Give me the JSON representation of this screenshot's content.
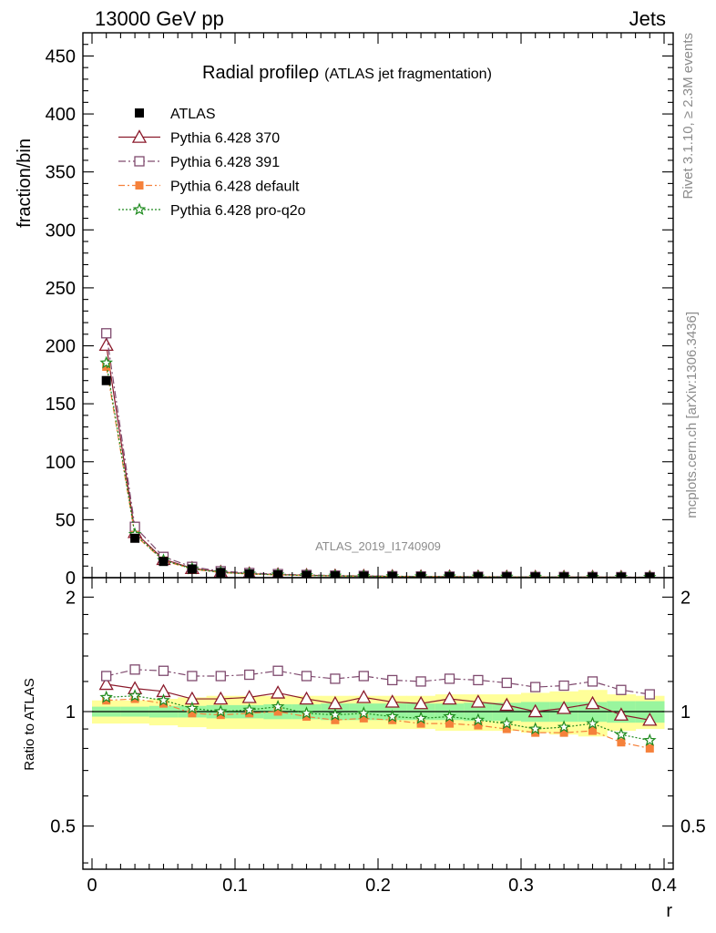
{
  "header": {
    "left": "13000 GeV pp",
    "right": "Jets"
  },
  "side_text": {
    "rivet": "Rivet 3.1.10, ≥ 2.3M events",
    "mcplots": "mcplots.cern.ch [arXiv:1306.3436]"
  },
  "watermark": "ATLAS_2019_I1740909",
  "chart_data": {
    "type": "scatter",
    "title": "Radial profile",
    "title_symbol": "ρ",
    "subtitle": "(ATLAS jet fragmentation)",
    "ylabel": "fraction/bin",
    "xlabel": "r",
    "ratio_ylabel": "Ratio to ATLAS",
    "xlim": [
      0,
      0.4
    ],
    "ylim": [
      0,
      470
    ],
    "ratio_ylim": [
      0.385,
      2.25
    ],
    "ratio_log": true,
    "x_ticks": [
      0,
      0.1,
      0.2,
      0.3,
      0.4
    ],
    "x_tick_labels": [
      "0",
      "0.1",
      "0.2",
      "0.3",
      "0.4"
    ],
    "y_ticks": [
      0,
      50,
      100,
      150,
      200,
      250,
      300,
      350,
      400,
      450
    ],
    "y_tick_labels": [
      "0",
      "50",
      "100",
      "150",
      "200",
      "250",
      "300",
      "350",
      "400",
      "450"
    ],
    "ratio_ticks": [
      0.5,
      1,
      2
    ],
    "ratio_tick_labels": [
      "0.5",
      "1",
      "2"
    ],
    "x": [
      0.01,
      0.03,
      0.05,
      0.07,
      0.09,
      0.11,
      0.13,
      0.15,
      0.17,
      0.19,
      0.21,
      0.23,
      0.25,
      0.27,
      0.29,
      0.31,
      0.33,
      0.35,
      0.37,
      0.39
    ],
    "reference": {
      "name": "ATLAS",
      "values": [
        170,
        34,
        14,
        7.5,
        4.5,
        3.2,
        2.4,
        1.9,
        1.5,
        1.25,
        1.05,
        0.9,
        0.8,
        0.7,
        0.62,
        0.55,
        0.5,
        0.45,
        0.41,
        0.38
      ],
      "band_inner": [
        0.03,
        0.03,
        0.035,
        0.035,
        0.04,
        0.04,
        0.045,
        0.045,
        0.05,
        0.05,
        0.05,
        0.05,
        0.05,
        0.055,
        0.055,
        0.06,
        0.06,
        0.06,
        0.065,
        0.065
      ],
      "band_outer": [
        0.07,
        0.07,
        0.08,
        0.09,
        0.1,
        0.1,
        0.1,
        0.1,
        0.1,
        0.1,
        0.1,
        0.1,
        0.11,
        0.11,
        0.11,
        0.12,
        0.13,
        0.14,
        0.11,
        0.1
      ]
    },
    "series": [
      {
        "name": "Pythia 6.428 370",
        "color": "#8b1a2b",
        "marker": "triangle-open",
        "dash": "",
        "ratio": [
          1.18,
          1.15,
          1.13,
          1.08,
          1.08,
          1.09,
          1.12,
          1.08,
          1.05,
          1.09,
          1.06,
          1.05,
          1.08,
          1.06,
          1.04,
          1.0,
          1.02,
          1.05,
          0.98,
          0.95
        ]
      },
      {
        "name": "Pythia 6.428 391",
        "color": "#7f4a6e",
        "marker": "square-open",
        "dash": "8,3,2,3",
        "ratio": [
          1.24,
          1.29,
          1.28,
          1.24,
          1.24,
          1.25,
          1.28,
          1.24,
          1.22,
          1.24,
          1.21,
          1.2,
          1.22,
          1.21,
          1.19,
          1.16,
          1.17,
          1.2,
          1.14,
          1.11
        ]
      },
      {
        "name": "Pythia 6.428 default",
        "color": "#f5813b",
        "marker": "square-filled",
        "dash": "7,3,2,3",
        "ratio": [
          1.07,
          1.08,
          1.05,
          0.99,
          0.98,
          0.99,
          1.0,
          0.97,
          0.95,
          0.96,
          0.95,
          0.93,
          0.93,
          0.92,
          0.9,
          0.88,
          0.88,
          0.89,
          0.83,
          0.8
        ]
      },
      {
        "name": "Pythia 6.428 pro-q2o",
        "color": "#1d8a1d",
        "marker": "star-open",
        "dash": "2,2",
        "ratio": [
          1.09,
          1.1,
          1.07,
          1.02,
          1.0,
          1.01,
          1.03,
          0.99,
          0.98,
          0.99,
          0.97,
          0.96,
          0.97,
          0.95,
          0.93,
          0.9,
          0.91,
          0.93,
          0.87,
          0.84
        ]
      }
    ],
    "legend_placement": "top-left",
    "grid": false
  }
}
